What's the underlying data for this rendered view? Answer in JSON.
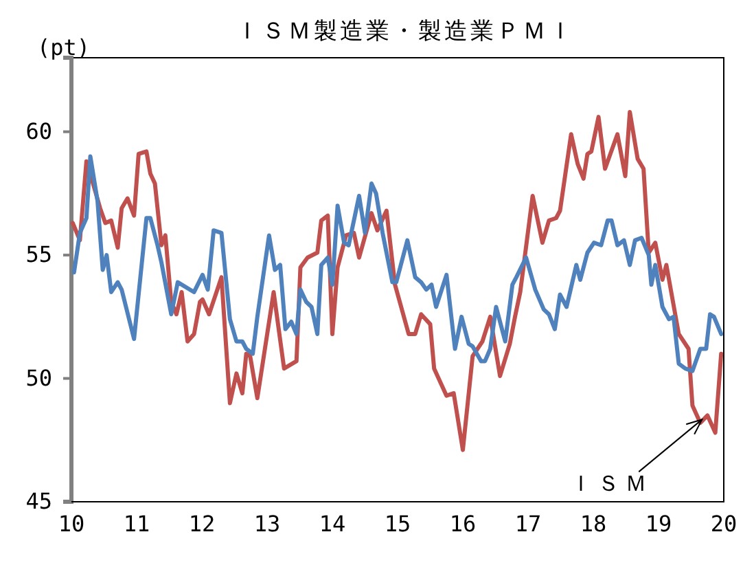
{
  "chart_data": {
    "type": "line",
    "title": "ＩＳＭ製造業・製造業ＰＭＩ",
    "ylabel": "(pt)",
    "xlim": [
      10,
      20
    ],
    "xticks": [
      10,
      11,
      12,
      13,
      14,
      15,
      16,
      17,
      18,
      19,
      20
    ],
    "ylim": [
      45,
      63
    ],
    "yticks": [
      45,
      50,
      55,
      60
    ],
    "grid": false,
    "line_style": "solid",
    "marker": "none",
    "annotations": [
      {
        "text": "ＩＳＭ",
        "x": 19.75,
        "y": 48.5
      }
    ],
    "series": [
      {
        "color": "#c0504d",
        "x": [
          10.02,
          10.13,
          10.23,
          10.31,
          10.44,
          10.52,
          10.61,
          10.71,
          10.77,
          10.86,
          10.96,
          11.03,
          11.15,
          11.21,
          11.28,
          11.38,
          11.44,
          11.53,
          11.61,
          11.69,
          11.78,
          11.88,
          11.97,
          12.01,
          12.11,
          12.3,
          12.43,
          12.53,
          12.62,
          12.68,
          12.74,
          12.85,
          13.1,
          13.26,
          13.45,
          13.51,
          13.62,
          13.77,
          13.83,
          13.93,
          14.0,
          14.08,
          14.21,
          14.33,
          14.41,
          14.6,
          14.69,
          14.83,
          14.96,
          15.17,
          15.27,
          15.36,
          15.5,
          15.56,
          15.75,
          15.86,
          16.0,
          16.15,
          16.3,
          16.42,
          16.57,
          16.72,
          16.8,
          16.88,
          17.07,
          17.22,
          17.32,
          17.43,
          17.49,
          17.66,
          17.76,
          17.85,
          17.91,
          17.97,
          18.08,
          18.18,
          18.37,
          18.49,
          18.56,
          18.68,
          18.77,
          18.85,
          18.95,
          19.06,
          19.12,
          19.31,
          19.46,
          19.52,
          19.64,
          19.75,
          19.87,
          19.96
        ],
        "values": [
          56.3,
          55.6,
          58.8,
          58.1,
          56.9,
          56.3,
          56.4,
          55.3,
          56.9,
          57.3,
          56.6,
          59.1,
          59.2,
          58.3,
          57.9,
          55.4,
          55.8,
          53.1,
          52.6,
          53.5,
          51.5,
          51.8,
          53.1,
          53.2,
          52.6,
          54.1,
          49.0,
          50.2,
          49.4,
          51.0,
          50.9,
          49.2,
          53.5,
          50.4,
          50.7,
          54.5,
          54.9,
          55.1,
          56.4,
          56.6,
          51.8,
          54.5,
          55.8,
          55.9,
          54.9,
          56.7,
          56.0,
          56.8,
          53.8,
          51.8,
          51.8,
          52.6,
          52.2,
          50.4,
          49.3,
          49.4,
          47.1,
          50.9,
          51.5,
          52.5,
          50.1,
          51.4,
          52.5,
          53.5,
          57.4,
          55.5,
          56.4,
          56.5,
          56.8,
          59.9,
          58.7,
          58.1,
          59.1,
          59.2,
          60.6,
          58.5,
          59.9,
          58.2,
          60.8,
          58.9,
          58.5,
          55.1,
          55.5,
          54.0,
          54.6,
          51.8,
          51.2,
          48.9,
          48.2,
          48.5,
          47.8,
          51.0
        ]
      },
      {
        "color": "#4f81bd",
        "x": [
          10.04,
          10.13,
          10.23,
          10.29,
          10.4,
          10.48,
          10.54,
          10.61,
          10.71,
          10.77,
          10.96,
          11.15,
          11.21,
          11.32,
          11.38,
          11.53,
          11.63,
          11.88,
          12.01,
          12.09,
          12.18,
          12.3,
          12.43,
          12.53,
          12.62,
          12.68,
          12.78,
          12.85,
          13.03,
          13.12,
          13.2,
          13.28,
          13.37,
          13.45,
          13.51,
          13.6,
          13.68,
          13.77,
          13.83,
          13.93,
          14.0,
          14.08,
          14.18,
          14.25,
          14.41,
          14.5,
          14.6,
          14.67,
          14.77,
          14.92,
          14.98,
          15.15,
          15.27,
          15.36,
          15.44,
          15.52,
          15.59,
          15.75,
          15.88,
          15.98,
          16.09,
          16.15,
          16.28,
          16.34,
          16.42,
          16.51,
          16.65,
          16.76,
          16.82,
          16.97,
          17.11,
          17.24,
          17.32,
          17.41,
          17.49,
          17.59,
          17.74,
          17.8,
          17.91,
          18.01,
          18.12,
          18.22,
          18.28,
          18.37,
          18.47,
          18.56,
          18.64,
          18.74,
          18.85,
          18.89,
          18.95,
          19.06,
          19.16,
          19.23,
          19.31,
          19.41,
          19.52,
          19.64,
          19.73,
          19.79,
          19.85,
          19.96
        ],
        "values": [
          54.3,
          55.9,
          56.5,
          59.0,
          57.2,
          54.4,
          55.0,
          53.5,
          53.9,
          53.6,
          51.6,
          56.5,
          56.5,
          55.4,
          54.7,
          52.6,
          53.9,
          53.5,
          54.2,
          53.6,
          56.0,
          55.9,
          52.4,
          51.5,
          51.5,
          51.2,
          51.0,
          52.5,
          55.8,
          54.4,
          54.6,
          52.0,
          52.3,
          51.8,
          53.6,
          53.1,
          52.9,
          51.8,
          54.6,
          54.9,
          53.8,
          57.0,
          55.5,
          55.4,
          57.4,
          55.9,
          57.9,
          57.5,
          55.9,
          53.9,
          53.9,
          55.6,
          54.1,
          53.9,
          53.6,
          53.8,
          52.9,
          54.2,
          51.2,
          52.5,
          51.4,
          51.3,
          50.7,
          50.7,
          51.2,
          52.9,
          51.5,
          53.8,
          54.1,
          54.9,
          53.6,
          52.8,
          52.6,
          52.0,
          53.4,
          52.9,
          54.6,
          54.0,
          55.1,
          55.5,
          55.4,
          56.4,
          56.4,
          55.4,
          55.6,
          54.6,
          55.6,
          55.7,
          55.0,
          53.8,
          54.6,
          52.9,
          52.4,
          52.5,
          50.6,
          50.4,
          50.3,
          51.2,
          51.2,
          52.6,
          52.5,
          51.8
        ]
      }
    ]
  }
}
